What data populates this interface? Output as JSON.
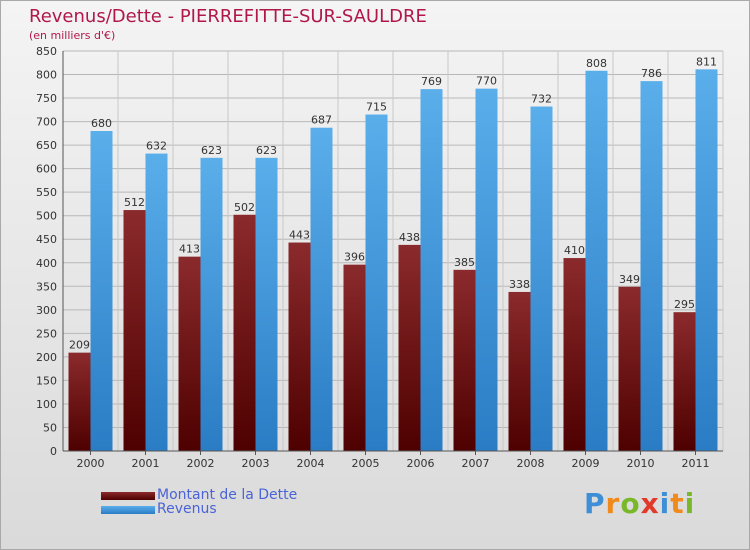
{
  "title": "Revenus/Dette - PIERREFITTE-SUR-SAULDRE",
  "subtitle": "(en milliers d'€)",
  "logo": {
    "text": "Proxiti",
    "letters": [
      {
        "ch": "P",
        "color": "#3f8fd6"
      },
      {
        "ch": "r",
        "color": "#f08a1c"
      },
      {
        "ch": "o",
        "color": "#79b829"
      },
      {
        "ch": "x",
        "color": "#e23a2a"
      },
      {
        "ch": "i",
        "color": "#3f8fd6"
      },
      {
        "ch": "t",
        "color": "#f08a1c"
      },
      {
        "ch": "i",
        "color": "#79b829"
      }
    ]
  },
  "chart_data": {
    "type": "bar",
    "title": "Revenus/Dette - PIERREFITTE-SUR-SAULDRE",
    "ylabel": "(en milliers d'€)",
    "xlabel": "",
    "ylim": [
      0,
      850
    ],
    "ytick_step": 50,
    "grid": true,
    "legend_position": "bottom-left",
    "categories": [
      "2000",
      "2001",
      "2002",
      "2003",
      "2004",
      "2005",
      "2006",
      "2007",
      "2008",
      "2009",
      "2010",
      "2011"
    ],
    "series": [
      {
        "name": "Montant de la Dette",
        "color": "#7a1f22",
        "values": [
          209,
          512,
          413,
          502,
          443,
          396,
          438,
          385,
          338,
          410,
          349,
          295
        ]
      },
      {
        "name": "Revenus",
        "color": "#4aa2e4",
        "values": [
          680,
          632,
          623,
          623,
          687,
          715,
          769,
          770,
          732,
          808,
          786,
          811
        ]
      }
    ]
  }
}
